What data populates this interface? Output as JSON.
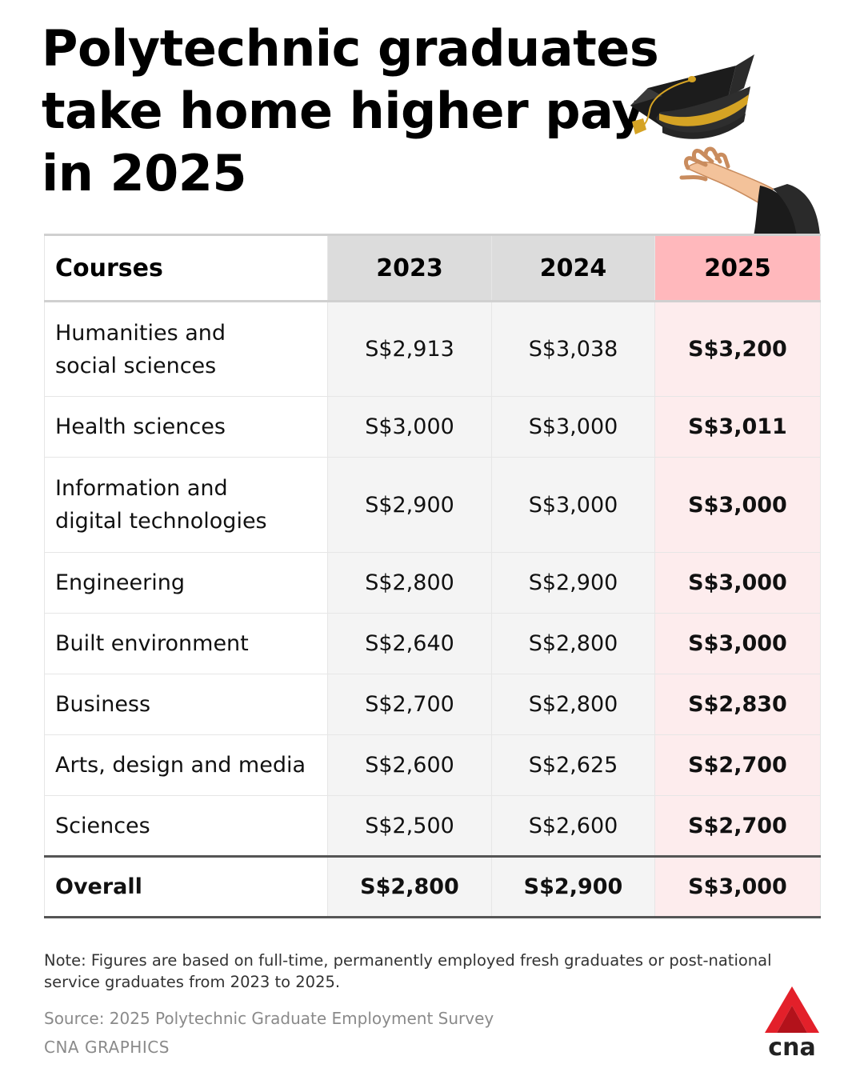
{
  "title": {
    "line1": "Polytechnic graduates",
    "line2": "take home higher pay",
    "line3": "in 2025"
  },
  "chart_data": {
    "type": "table",
    "title": "Polytechnic graduates take home higher pay in 2025",
    "columns": [
      "Courses",
      "2023",
      "2024",
      "2025"
    ],
    "rows": [
      {
        "course_lines": [
          "Humanities and",
          "social sciences"
        ],
        "v2023": "S$2,913",
        "v2024": "S$3,038",
        "v2025": "S$3,200"
      },
      {
        "course_lines": [
          "Health sciences"
        ],
        "v2023": "S$3,000",
        "v2024": "S$3,000",
        "v2025": "S$3,011"
      },
      {
        "course_lines": [
          "Information and",
          "digital technologies"
        ],
        "v2023": "S$2,900",
        "v2024": "S$3,000",
        "v2025": "S$3,000"
      },
      {
        "course_lines": [
          "Engineering"
        ],
        "v2023": "S$2,800",
        "v2024": "S$2,900",
        "v2025": "S$3,000"
      },
      {
        "course_lines": [
          "Built environment"
        ],
        "v2023": "S$2,640",
        "v2024": "S$2,800",
        "v2025": "S$3,000"
      },
      {
        "course_lines": [
          "Business"
        ],
        "v2023": "S$2,700",
        "v2024": "S$2,800",
        "v2025": "S$2,830"
      },
      {
        "course_lines": [
          "Arts, design and media"
        ],
        "v2023": "S$2,600",
        "v2024": "S$2,625",
        "v2025": "S$2,700"
      },
      {
        "course_lines": [
          "Sciences"
        ],
        "v2023": "S$2,500",
        "v2024": "S$2,600",
        "v2025": "S$2,700"
      }
    ],
    "total": {
      "label": "Overall",
      "v2023": "S$2,800",
      "v2024": "S$2,900",
      "v2025": "S$3,000"
    }
  },
  "note": "Note: Figures are based on full-time, permanently employed fresh graduates or post-national service graduates from 2023 to 2025.",
  "source": "Source: 2025 Polytechnic Graduate Employment Survey",
  "credit": "CNA GRAPHICS",
  "logo_text": "cna",
  "colors": {
    "highlight_header": "#ffb8bc",
    "highlight_cell": "#fdeced",
    "year_header": "#dcdcdc",
    "logo_red": "#e3202a"
  }
}
